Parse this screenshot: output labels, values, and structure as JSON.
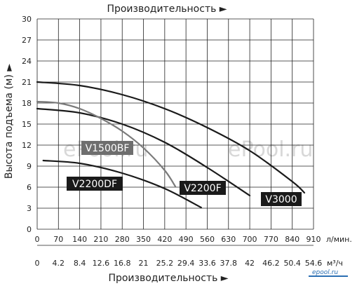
{
  "chart_data": {
    "type": "line",
    "title_top": "Производительность ►",
    "title_bottom": "Производительность ►",
    "ylabel": "Высота подъема (м) ►",
    "x_unit_top": "л/мин.",
    "x_unit_bottom": "м³/ч",
    "xlim": [
      0,
      910
    ],
    "ylim": [
      0,
      30
    ],
    "x_ticks": [
      "0",
      "70",
      "140",
      "210",
      "280",
      "350",
      "420",
      "490",
      "560",
      "630",
      "700",
      "770",
      "840",
      "910"
    ],
    "x_ticks_bottom": [
      "0",
      "4.2",
      "8.4",
      "12.6",
      "16.8",
      "21",
      "25.2",
      "29.4",
      "33.6",
      "37.8",
      "42",
      "46.2",
      "50.4",
      "54.6"
    ],
    "y_ticks": [
      "0",
      "3",
      "6",
      "9",
      "12",
      "15",
      "18",
      "21",
      "24",
      "27",
      "30"
    ],
    "grid": true,
    "series": [
      {
        "name": "V3000",
        "color": "#1a1a1a",
        "x": [
          0,
          140,
          280,
          420,
          560,
          700,
          840,
          880
        ],
        "y": [
          21,
          20.5,
          19.2,
          17.2,
          14.5,
          11.2,
          6.8,
          5.2
        ]
      },
      {
        "name": "V2200F",
        "color": "#1a1a1a",
        "x": [
          0,
          140,
          280,
          420,
          560,
          700
        ],
        "y": [
          17.2,
          16.6,
          15.0,
          12.4,
          8.8,
          4.8
        ]
      },
      {
        "name": "V1500BF",
        "color": "#7a7a7a",
        "x": [
          0,
          70,
          140,
          210,
          280,
          350,
          420,
          455
        ],
        "y": [
          18.2,
          18.0,
          17.2,
          15.8,
          14.0,
          11.6,
          8.4,
          6.1
        ]
      },
      {
        "name": "V2200DF",
        "color": "#1a1a1a",
        "x": [
          20,
          140,
          280,
          420,
          540
        ],
        "y": [
          9.8,
          9.4,
          8.0,
          5.8,
          3.1
        ]
      }
    ],
    "labels": {
      "V3000": "V3000",
      "V2200F": "V2200F",
      "V1500BF": "V1500BF",
      "V2200DF": "V2200DF"
    }
  },
  "watermarks": [
    "ePool.ru",
    "ePool.ru"
  ],
  "logo": "epool.ru"
}
